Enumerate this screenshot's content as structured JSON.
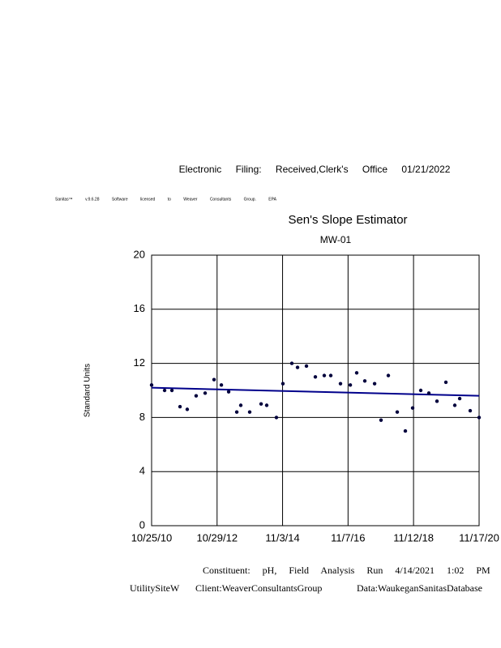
{
  "header": "Electronic Filing: Received,Clerk's Office 01/21/2022",
  "license": "Sanitas™ v.9.6.28 Software licensed to Weaver Consultants Group. EPA",
  "chart_data": {
    "type": "scatter",
    "title": "Sen's Slope Estimator",
    "subtitle": "MW-01",
    "y_label": "Standard Units",
    "color": "#00003c",
    "grid": true,
    "x": [
      "10/25/10",
      "3/20/11",
      "6/10/11",
      "9/9/11",
      "11/29/11",
      "3/8/12",
      "6/17/12",
      "9/25/12",
      "12/16/12",
      "3/8/13",
      "6/7/13",
      "7/22/13",
      "10/30/13",
      "3/7/14",
      "5/9/14",
      "8/26/14",
      "11/7/14",
      "2/15/15",
      "4/20/15",
      "7/29/15",
      "11/6/15",
      "2/14/16",
      "4/27/16",
      "8/14/16",
      "12/2/16",
      "2/12/17",
      "5/14/17",
      "9/1/17",
      "11/12/17",
      "2/2/18",
      "5/13/18",
      "8/12/18",
      "11/2/18",
      "2/1/19",
      "5/3/19",
      "8/2/19",
      "11/10/19",
      "2/18/20",
      "4/13/20",
      "8/9/20",
      "11/17/20"
    ],
    "values": [
      10.4,
      10.0,
      10.0,
      8.8,
      8.6,
      9.6,
      9.8,
      10.8,
      10.4,
      9.9,
      8.4,
      8.9,
      8.4,
      9.0,
      8.9,
      8.0,
      10.5,
      12.0,
      11.7,
      11.8,
      11.0,
      11.1,
      11.1,
      10.5,
      10.4,
      11.3,
      10.7,
      10.5,
      7.8,
      11.1,
      8.4,
      7.0,
      8.7,
      10.0,
      9.8,
      9.2,
      10.6,
      8.9,
      9.4,
      8.5,
      8.0
    ],
    "trend": {
      "x": [
        "10/25/10",
        "11/17/20"
      ],
      "values": [
        10.2,
        9.6
      ],
      "color": "#00008b"
    },
    "xlim": [
      "10/25/10",
      "11/17/20"
    ],
    "xticks": [
      "10/25/10",
      "10/29/12",
      "11/3/14",
      "11/7/16",
      "11/12/18",
      "11/17/20"
    ],
    "ylim": [
      0,
      20
    ],
    "yticks": [
      0,
      4,
      8,
      12,
      16,
      20
    ]
  },
  "footer": {
    "constituent": "Constituent: pH, Field Analysis Run 4/14/2021 1:02 PM",
    "site": "UtilitySiteW",
    "client": "Client:WeaverConsultantsGroup",
    "data": "Data:WaukeganSanitasDatabase"
  }
}
